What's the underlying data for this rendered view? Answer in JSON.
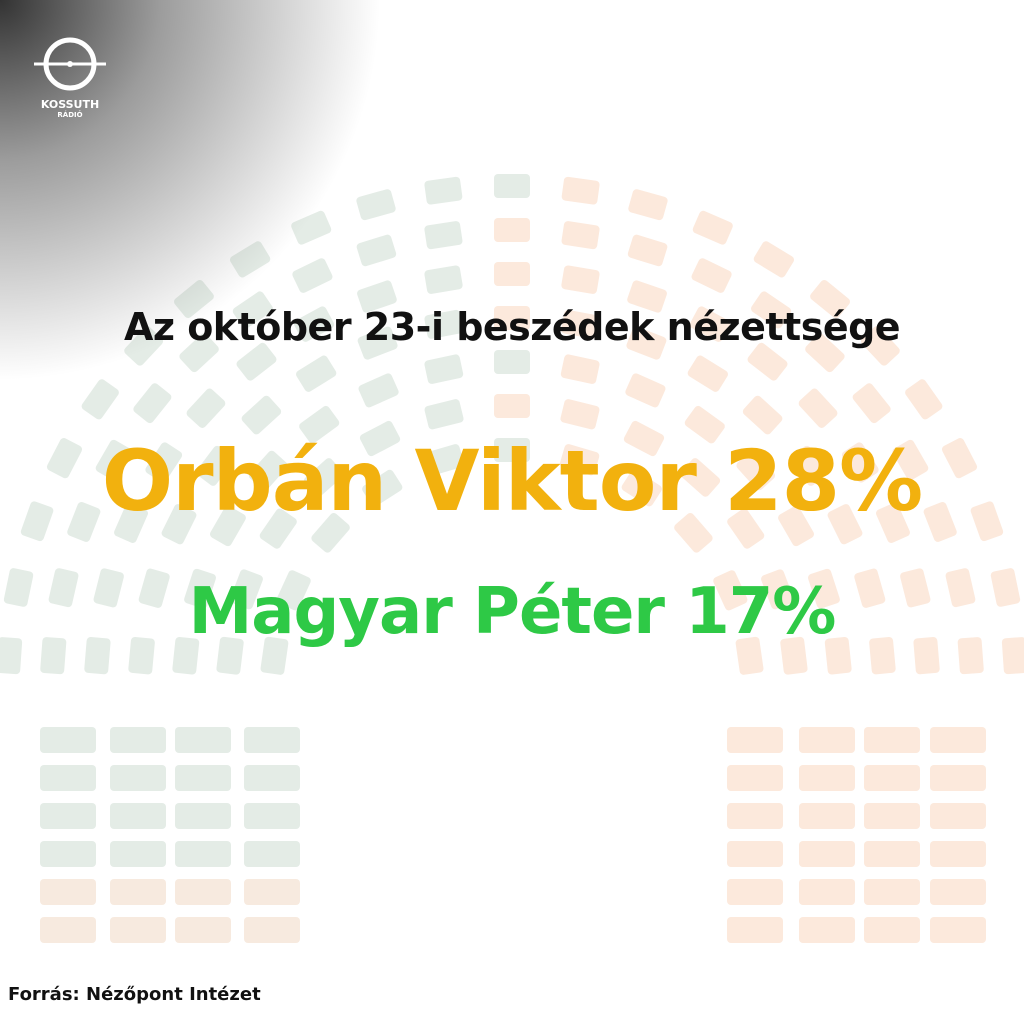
{
  "logo": {
    "name": "KOSSUTH",
    "subname": "RÁDIÓ"
  },
  "title": "Az október 23-i beszédek nézettsége",
  "lines": [
    "Orbán Viktor 28%",
    "Magyar Péter 17%"
  ],
  "source": "Forrás: Nézőpont Intézet"
}
